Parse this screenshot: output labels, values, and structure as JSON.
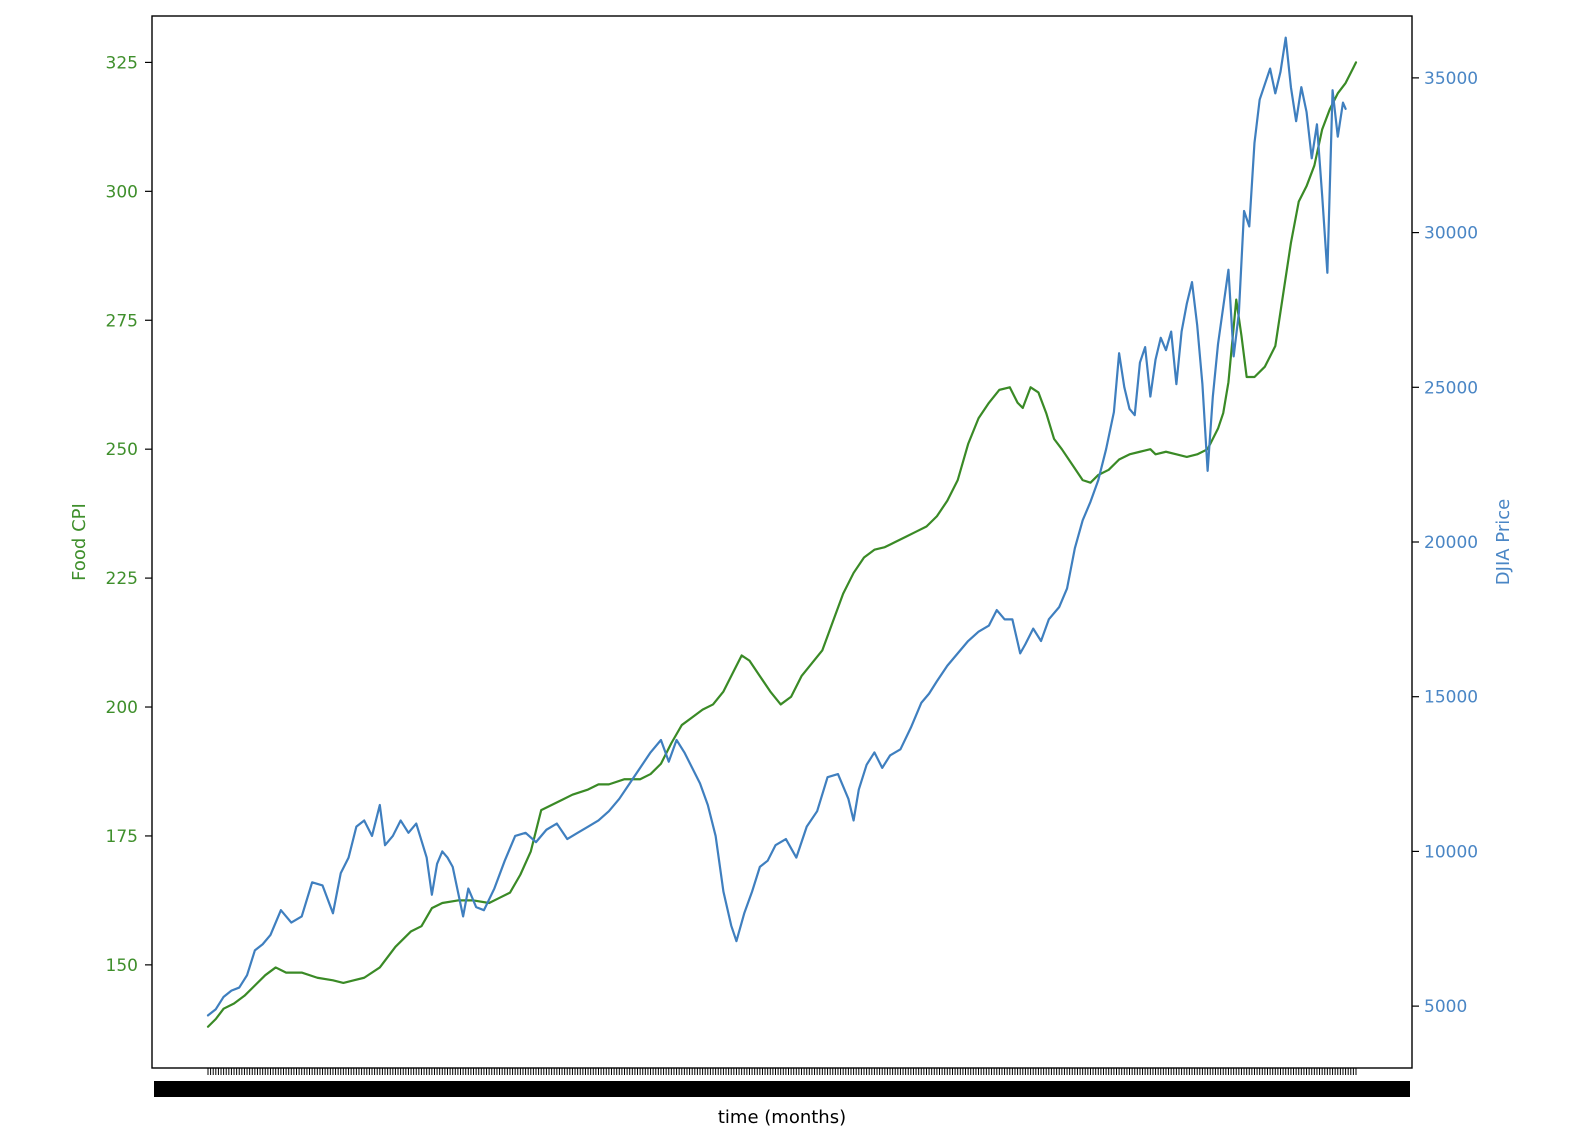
{
  "chart_data": {
    "type": "line",
    "xlabel": "time (months)",
    "ylabel_left": "Food CPI",
    "ylabel_right": "DJIA Price",
    "grid": false,
    "legend": "none",
    "x_ticks": "monthly (one per data point, labels overlapping)",
    "axes": {
      "left": {
        "ylim": [
          130,
          334
        ],
        "ticks": [
          150,
          175,
          200,
          225,
          250,
          275,
          300,
          325
        ],
        "color": "#3f8f2c"
      },
      "right": {
        "ylim": [
          3000,
          37000
        ],
        "ticks": [
          5000,
          10000,
          15000,
          20000,
          25000,
          30000,
          35000
        ],
        "color": "#4a86c5"
      }
    },
    "series": [
      {
        "name": "Food CPI",
        "axis": "left",
        "color": "#3a8a26",
        "anchors": [
          [
            0,
            138
          ],
          [
            3,
            139.5
          ],
          [
            6,
            141.5
          ],
          [
            10,
            142.5
          ],
          [
            14,
            144
          ],
          [
            18,
            146
          ],
          [
            22,
            148
          ],
          [
            26,
            149.5
          ],
          [
            30,
            148.5
          ],
          [
            36,
            148.5
          ],
          [
            42,
            147.5
          ],
          [
            48,
            147
          ],
          [
            52,
            146.5
          ],
          [
            56,
            147
          ],
          [
            60,
            147.5
          ],
          [
            66,
            149.5
          ],
          [
            72,
            153.5
          ],
          [
            78,
            156.5
          ],
          [
            82,
            157.5
          ],
          [
            86,
            161
          ],
          [
            90,
            162
          ],
          [
            96,
            162.5
          ],
          [
            102,
            162.5
          ],
          [
            108,
            162
          ],
          [
            112,
            163
          ],
          [
            116,
            164
          ],
          [
            120,
            167.5
          ],
          [
            124,
            172
          ],
          [
            126,
            176
          ],
          [
            128,
            180
          ],
          [
            132,
            181
          ],
          [
            136,
            182
          ],
          [
            140,
            183
          ],
          [
            146,
            184
          ],
          [
            150,
            185
          ],
          [
            154,
            185
          ],
          [
            160,
            186
          ],
          [
            166,
            186
          ],
          [
            170,
            187
          ],
          [
            174,
            189
          ],
          [
            178,
            193
          ],
          [
            182,
            196.5
          ],
          [
            186,
            198
          ],
          [
            190,
            199.5
          ],
          [
            194,
            200.5
          ],
          [
            198,
            203
          ],
          [
            202,
            207
          ],
          [
            205,
            210
          ],
          [
            208,
            209
          ],
          [
            212,
            206
          ],
          [
            216,
            203
          ],
          [
            220,
            200.5
          ],
          [
            224,
            202
          ],
          [
            228,
            206
          ],
          [
            232,
            208.5
          ],
          [
            236,
            211
          ],
          [
            240,
            216.5
          ],
          [
            244,
            222
          ],
          [
            248,
            226
          ],
          [
            252,
            229
          ],
          [
            256,
            230.5
          ],
          [
            260,
            231
          ],
          [
            264,
            232
          ],
          [
            268,
            233
          ],
          [
            272,
            234
          ],
          [
            276,
            235
          ],
          [
            280,
            237
          ],
          [
            284,
            240
          ],
          [
            288,
            244
          ],
          [
            292,
            251
          ],
          [
            296,
            256
          ],
          [
            300,
            259
          ],
          [
            304,
            261.5
          ],
          [
            308,
            262
          ],
          [
            311,
            259
          ],
          [
            313,
            258
          ],
          [
            316,
            262
          ],
          [
            319,
            261
          ],
          [
            322,
            257
          ],
          [
            325,
            252
          ],
          [
            328,
            250
          ],
          [
            332,
            247
          ],
          [
            336,
            244
          ],
          [
            339,
            243.5
          ],
          [
            342,
            245
          ],
          [
            346,
            246
          ],
          [
            350,
            248
          ],
          [
            354,
            249
          ],
          [
            358,
            249.5
          ],
          [
            362,
            250
          ],
          [
            364,
            249
          ],
          [
            368,
            249.5
          ],
          [
            372,
            249
          ],
          [
            376,
            248.5
          ],
          [
            380,
            249
          ],
          [
            384,
            250
          ],
          [
            388,
            254
          ],
          [
            390,
            257
          ],
          [
            392,
            263
          ],
          [
            395,
            279
          ],
          [
            397,
            272
          ],
          [
            399,
            264
          ],
          [
            402,
            264
          ],
          [
            406,
            266
          ],
          [
            410,
            270
          ],
          [
            413,
            280
          ],
          [
            416,
            290
          ],
          [
            419,
            298
          ],
          [
            422,
            301
          ],
          [
            425,
            305
          ],
          [
            428,
            312
          ],
          [
            431,
            316
          ],
          [
            434,
            319
          ],
          [
            437,
            321
          ],
          [
            440,
            324
          ],
          [
            441,
            325
          ]
        ]
      },
      {
        "name": "DJIA Price",
        "axis": "right",
        "color": "#3f7fbf",
        "anchors": [
          [
            0,
            4700
          ],
          [
            3,
            4900
          ],
          [
            6,
            5300
          ],
          [
            9,
            5500
          ],
          [
            12,
            5600
          ],
          [
            15,
            6000
          ],
          [
            18,
            6800
          ],
          [
            21,
            7000
          ],
          [
            24,
            7300
          ],
          [
            28,
            8100
          ],
          [
            32,
            7700
          ],
          [
            36,
            7900
          ],
          [
            40,
            9000
          ],
          [
            44,
            8900
          ],
          [
            48,
            8000
          ],
          [
            51,
            9300
          ],
          [
            54,
            9800
          ],
          [
            57,
            10800
          ],
          [
            60,
            11000
          ],
          [
            63,
            10500
          ],
          [
            66,
            11500
          ],
          [
            68,
            10200
          ],
          [
            71,
            10500
          ],
          [
            74,
            11000
          ],
          [
            77,
            10600
          ],
          [
            80,
            10900
          ],
          [
            84,
            9800
          ],
          [
            86,
            8600
          ],
          [
            88,
            9600
          ],
          [
            90,
            10000
          ],
          [
            92,
            9800
          ],
          [
            94,
            9500
          ],
          [
            96,
            8700
          ],
          [
            98,
            7900
          ],
          [
            100,
            8800
          ],
          [
            103,
            8200
          ],
          [
            106,
            8100
          ],
          [
            110,
            8800
          ],
          [
            114,
            9700
          ],
          [
            118,
            10500
          ],
          [
            122,
            10600
          ],
          [
            126,
            10300
          ],
          [
            130,
            10700
          ],
          [
            134,
            10900
          ],
          [
            138,
            10400
          ],
          [
            142,
            10600
          ],
          [
            146,
            10800
          ],
          [
            150,
            11000
          ],
          [
            154,
            11300
          ],
          [
            158,
            11700
          ],
          [
            162,
            12200
          ],
          [
            166,
            12700
          ],
          [
            170,
            13200
          ],
          [
            174,
            13600
          ],
          [
            177,
            12900
          ],
          [
            180,
            13600
          ],
          [
            183,
            13200
          ],
          [
            186,
            12700
          ],
          [
            189,
            12200
          ],
          [
            192,
            11500
          ],
          [
            195,
            10500
          ],
          [
            198,
            8700
          ],
          [
            201,
            7600
          ],
          [
            203,
            7100
          ],
          [
            206,
            8000
          ],
          [
            209,
            8700
          ],
          [
            212,
            9500
          ],
          [
            215,
            9700
          ],
          [
            218,
            10200
          ],
          [
            222,
            10400
          ],
          [
            226,
            9800
          ],
          [
            230,
            10800
          ],
          [
            234,
            11300
          ],
          [
            238,
            12400
          ],
          [
            242,
            12500
          ],
          [
            246,
            11700
          ],
          [
            248,
            11000
          ],
          [
            250,
            12000
          ],
          [
            253,
            12800
          ],
          [
            256,
            13200
          ],
          [
            259,
            12700
          ],
          [
            262,
            13100
          ],
          [
            266,
            13300
          ],
          [
            270,
            14000
          ],
          [
            274,
            14800
          ],
          [
            277,
            15100
          ],
          [
            280,
            15500
          ],
          [
            284,
            16000
          ],
          [
            288,
            16400
          ],
          [
            292,
            16800
          ],
          [
            296,
            17100
          ],
          [
            300,
            17300
          ],
          [
            303,
            17800
          ],
          [
            306,
            17500
          ],
          [
            309,
            17500
          ],
          [
            312,
            16400
          ],
          [
            314,
            16700
          ],
          [
            317,
            17200
          ],
          [
            320,
            16800
          ],
          [
            323,
            17500
          ],
          [
            327,
            17900
          ],
          [
            330,
            18500
          ],
          [
            333,
            19800
          ],
          [
            336,
            20700
          ],
          [
            339,
            21300
          ],
          [
            342,
            22000
          ],
          [
            345,
            23000
          ],
          [
            348,
            24200
          ],
          [
            350,
            26100
          ],
          [
            352,
            25000
          ],
          [
            354,
            24300
          ],
          [
            356,
            24100
          ],
          [
            358,
            25800
          ],
          [
            360,
            26300
          ],
          [
            362,
            24700
          ],
          [
            364,
            25900
          ],
          [
            366,
            26600
          ],
          [
            368,
            26200
          ],
          [
            370,
            26800
          ],
          [
            372,
            25100
          ],
          [
            374,
            26800
          ],
          [
            376,
            27700
          ],
          [
            378,
            28400
          ],
          [
            380,
            27000
          ],
          [
            382,
            25100
          ],
          [
            384,
            22300
          ],
          [
            386,
            24700
          ],
          [
            388,
            26400
          ],
          [
            390,
            27600
          ],
          [
            392,
            28800
          ],
          [
            394,
            26000
          ],
          [
            396,
            27400
          ],
          [
            398,
            30700
          ],
          [
            400,
            30200
          ],
          [
            402,
            32900
          ],
          [
            404,
            34300
          ],
          [
            406,
            34800
          ],
          [
            408,
            35300
          ],
          [
            410,
            34500
          ],
          [
            412,
            35200
          ],
          [
            414,
            36300
          ],
          [
            416,
            34700
          ],
          [
            418,
            33600
          ],
          [
            420,
            34700
          ],
          [
            422,
            33900
          ],
          [
            424,
            32400
          ],
          [
            426,
            33500
          ],
          [
            428,
            31200
          ],
          [
            430,
            28700
          ],
          [
            432,
            34600
          ],
          [
            434,
            33100
          ],
          [
            436,
            34200
          ],
          [
            437,
            34000
          ]
        ]
      }
    ]
  }
}
